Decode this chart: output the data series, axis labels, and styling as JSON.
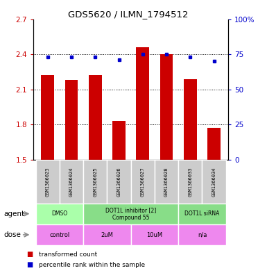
{
  "title": "GDS5620 / ILMN_1794512",
  "samples": [
    "GSM1366023",
    "GSM1366024",
    "GSM1366025",
    "GSM1366026",
    "GSM1366027",
    "GSM1366028",
    "GSM1366033",
    "GSM1366034"
  ],
  "red_values": [
    2.22,
    2.18,
    2.22,
    1.83,
    2.46,
    2.4,
    2.19,
    1.77
  ],
  "blue_values": [
    73,
    73,
    73,
    71,
    75,
    75,
    73,
    70
  ],
  "ylim": [
    1.5,
    2.7
  ],
  "y2lim": [
    0,
    100
  ],
  "yticks": [
    1.5,
    1.8,
    2.1,
    2.4,
    2.7
  ],
  "y2ticks": [
    0,
    25,
    50,
    75,
    100
  ],
  "ytick_labels": [
    "1.5",
    "1.8",
    "2.1",
    "2.4",
    "2.7"
  ],
  "y2tick_labels": [
    "0",
    "25",
    "50",
    "75",
    "100%"
  ],
  "bar_color": "#cc0000",
  "dot_color": "#0000cc",
  "sample_bg_color": "#cccccc",
  "agent_groups": [
    {
      "label": "DMSO",
      "start": 0,
      "end": 1,
      "color": "#aaffaa"
    },
    {
      "label": "DOT1L inhibitor [2]\nCompound 55",
      "start": 2,
      "end": 5,
      "color": "#88dd88"
    },
    {
      "label": "DOT1L siRNA",
      "start": 6,
      "end": 7,
      "color": "#88dd88"
    }
  ],
  "dose_groups": [
    {
      "label": "control",
      "start": 0,
      "end": 1,
      "color": "#ee88ee"
    },
    {
      "label": "2uM",
      "start": 2,
      "end": 3,
      "color": "#ee88ee"
    },
    {
      "label": "10uM",
      "start": 4,
      "end": 5,
      "color": "#ee88ee"
    },
    {
      "label": "n/a",
      "start": 6,
      "end": 7,
      "color": "#ee88ee"
    }
  ],
  "legend_items": [
    {
      "label": "transformed count",
      "color": "#cc0000"
    },
    {
      "label": "percentile rank within the sample",
      "color": "#0000cc"
    }
  ],
  "agent_label": "agent",
  "dose_label": "dose",
  "background_color": "#ffffff"
}
